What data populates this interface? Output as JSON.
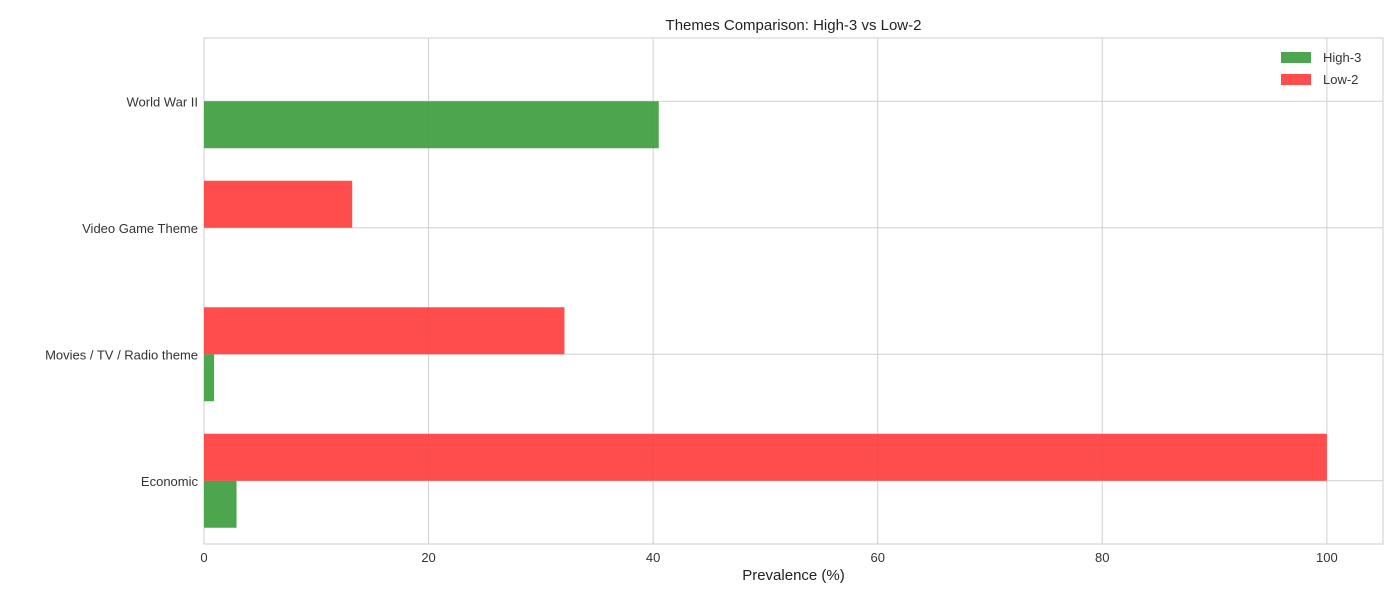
{
  "chart_data": {
    "type": "bar",
    "orientation": "horizontal",
    "title": "Themes Comparison: High-3 vs Low-2",
    "xlabel": "Prevalence (%)",
    "ylabel": "",
    "categories": [
      "Economic",
      "Movies / TV / Radio theme",
      "Video Game Theme",
      "World War II"
    ],
    "series": [
      {
        "name": "High-3",
        "color": "#3a9c3a",
        "values": [
          2.9,
          0.9,
          0.0,
          40.5
        ]
      },
      {
        "name": "Low-2",
        "color": "#ff3a3a",
        "values": [
          100.0,
          32.1,
          13.2,
          0.0
        ]
      }
    ],
    "xlim": [
      0,
      105
    ],
    "xticks": [
      0,
      20,
      40,
      60,
      80,
      100
    ],
    "grid": true,
    "legend_position": "top-right"
  }
}
